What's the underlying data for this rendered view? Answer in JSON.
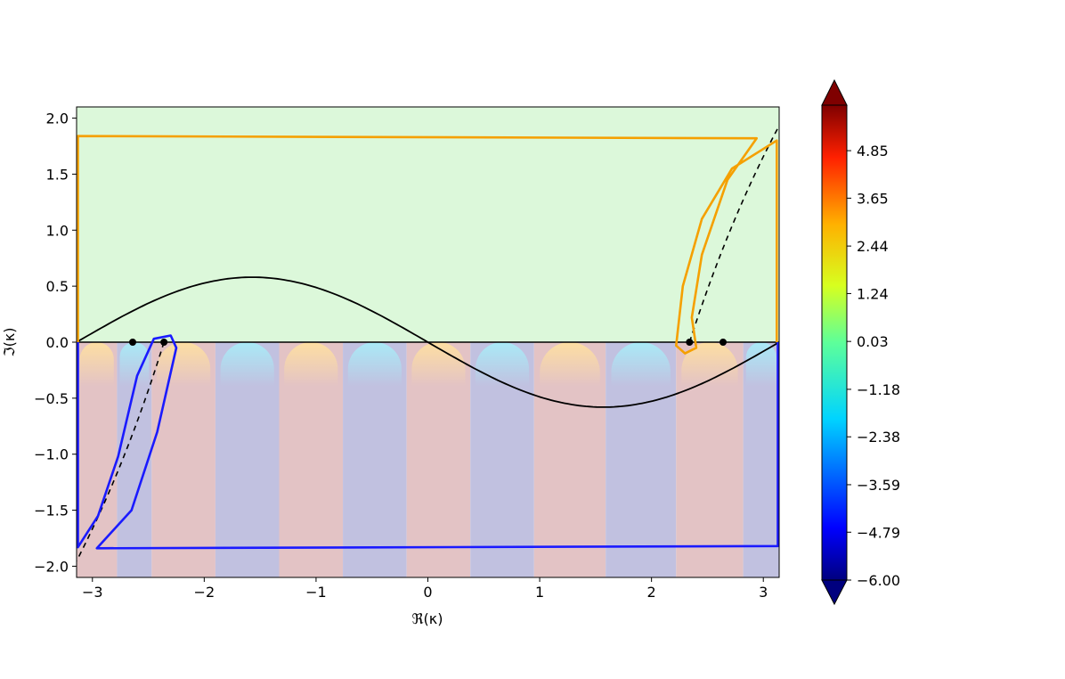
{
  "chart_data": {
    "type": "contour",
    "xlabel": "ℜ(κ)",
    "ylabel": "ℑ(κ)",
    "xlim": [
      -3.1416,
      3.1416
    ],
    "ylim": [
      -2.1,
      2.1
    ],
    "x_ticks": [
      -3,
      -2,
      -1,
      0,
      1,
      2,
      3
    ],
    "x_tick_labels": [
      "−3",
      "−2",
      "−1",
      "0",
      "1",
      "2",
      "3"
    ],
    "y_ticks": [
      2.0,
      1.5,
      1.0,
      0.5,
      0.0,
      -0.5,
      -1.0,
      -1.5,
      -2.0
    ],
    "y_tick_labels": [
      "2.0",
      "1.5",
      "1.0",
      "0.5",
      "0.0",
      "−0.5",
      "−1.0",
      "−1.5",
      "−2.0"
    ],
    "colorbar": {
      "colormap": "jet",
      "extend": "both",
      "range": [
        -6.0,
        6.0
      ],
      "ticks": [
        4.85,
        3.65,
        2.44,
        1.24,
        0.03,
        -1.18,
        -2.38,
        -3.59,
        -4.79,
        -6.0
      ],
      "tick_labels": [
        "4.85",
        "3.65",
        "2.44",
        "1.24",
        "0.03",
        "−1.18",
        "−2.38",
        "−3.59",
        "−4.79",
        "−6.00"
      ]
    },
    "regions": {
      "upper_fill_color": "#dcf8da",
      "lower_band_colors": [
        "#e3c3c5",
        "#c1c1e0"
      ],
      "band_boundaries_x": [
        -3.1416,
        -2.78,
        -2.47,
        -1.9,
        -1.33,
        -0.76,
        -0.19,
        0.38,
        0.95,
        1.59,
        2.22,
        2.82,
        3.1416
      ]
    },
    "curves": {
      "sine_amplitude": 0.58,
      "sine_color": "#000000",
      "real_axis_line_color": "#000000",
      "branch_cut_right": {
        "style": "dashed",
        "color": "#000000",
        "from": [
          2.34,
          0.0
        ],
        "to": [
          3.14,
          1.93
        ]
      },
      "branch_cut_left": {
        "style": "dashed",
        "color": "#000000",
        "from": [
          -2.36,
          0.0
        ],
        "to": [
          -3.14,
          -1.95
        ]
      },
      "orange_contour": {
        "color": "#f5a000",
        "points": [
          [
            -3.13,
            0.0
          ],
          [
            -3.13,
            1.84
          ],
          [
            2.94,
            1.82
          ],
          [
            2.68,
            1.45
          ],
          [
            2.45,
            0.78
          ],
          [
            2.36,
            0.22
          ],
          [
            2.4,
            -0.05
          ],
          [
            2.3,
            -0.1
          ],
          [
            2.22,
            -0.03
          ],
          [
            2.28,
            0.5
          ],
          [
            2.45,
            1.1
          ],
          [
            2.72,
            1.55
          ],
          [
            3.12,
            1.8
          ],
          [
            3.12,
            0.0
          ]
        ]
      },
      "blue_contour": {
        "color": "#1a1aff",
        "points": [
          [
            -3.13,
            0.0
          ],
          [
            -3.13,
            -1.83
          ],
          [
            -2.95,
            -1.55
          ],
          [
            -2.77,
            -1.02
          ],
          [
            -2.6,
            -0.3
          ],
          [
            -2.45,
            0.03
          ],
          [
            -2.3,
            0.06
          ],
          [
            -2.25,
            -0.05
          ],
          [
            -2.42,
            -0.8
          ],
          [
            -2.65,
            -1.5
          ],
          [
            -2.96,
            -1.84
          ],
          [
            3.13,
            -1.82
          ],
          [
            3.13,
            0.0
          ]
        ]
      }
    },
    "points": [
      [
        -2.64,
        0.0
      ],
      [
        -2.36,
        0.0
      ],
      [
        2.34,
        0.0
      ],
      [
        2.64,
        0.0
      ]
    ]
  }
}
